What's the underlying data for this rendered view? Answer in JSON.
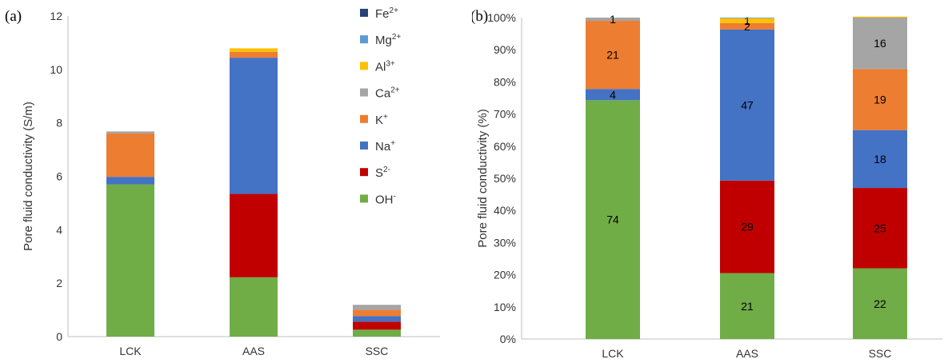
{
  "chart_data": [
    {
      "type": "bar",
      "stacked": true,
      "panel_label": "(a)",
      "title": "",
      "xlabel": "",
      "ylabel": "Pore fluid conductivity (S/m)",
      "ylim": [
        0,
        12
      ],
      "yticks": [
        0,
        2,
        4,
        6,
        8,
        10,
        12
      ],
      "ytick_labels": [
        "0",
        "2",
        "4",
        "6",
        "8",
        "10",
        "12"
      ],
      "grid": false,
      "legend_position": "right",
      "categories": [
        "LCK",
        "AAS",
        "SSC"
      ],
      "series": [
        {
          "key": "oh",
          "name": "OH",
          "sup": "-",
          "color": "#70ad47",
          "values": [
            5.7,
            2.22,
            0.26
          ]
        },
        {
          "key": "s",
          "name": "S",
          "sup": "2-",
          "color": "#c00000",
          "values": [
            0,
            3.12,
            0.3
          ]
        },
        {
          "key": "na",
          "name": "Na",
          "sup": "+",
          "color": "#4472c4",
          "values": [
            0.28,
            5.1,
            0.21
          ]
        },
        {
          "key": "k",
          "name": "K",
          "sup": "+",
          "color": "#ed7d31",
          "values": [
            1.62,
            0.22,
            0.23
          ]
        },
        {
          "key": "ca",
          "name": "Ca",
          "sup": "2+",
          "color": "#a5a5a5",
          "values": [
            0.08,
            0,
            0.19
          ]
        },
        {
          "key": "al",
          "name": "Al",
          "sup": "3+",
          "color": "#ffc000",
          "values": [
            0,
            0.13,
            0
          ]
        },
        {
          "key": "mg",
          "name": "Mg",
          "sup": "2+",
          "color": "#5b9bd5",
          "values": [
            0,
            0,
            0
          ]
        },
        {
          "key": "fe",
          "name": "Fe",
          "sup": "2+",
          "color": "#264478",
          "values": [
            0,
            0,
            0
          ]
        }
      ]
    },
    {
      "type": "bar",
      "stacked": true,
      "panel_label": "(b)",
      "title": "",
      "xlabel": "",
      "ylabel": "Pore fluid conductivity (%)",
      "ylim": [
        0,
        100
      ],
      "yticks": [
        0,
        10,
        20,
        30,
        40,
        50,
        60,
        70,
        80,
        90,
        100
      ],
      "ytick_labels": [
        "0%",
        "10%",
        "20%",
        "30%",
        "40%",
        "50%",
        "60%",
        "70%",
        "80%",
        "90%",
        "100%"
      ],
      "grid": false,
      "categories": [
        "LCK",
        "AAS",
        "SSC"
      ],
      "series": [
        {
          "key": "oh",
          "color": "#70ad47",
          "values": [
            74.3,
            20.5,
            22
          ],
          "labels": [
            "74",
            "21",
            "22"
          ]
        },
        {
          "key": "s",
          "color": "#c00000",
          "values": [
            0,
            28.8,
            25
          ],
          "labels": [
            "",
            "29",
            "25"
          ]
        },
        {
          "key": "na",
          "color": "#4472c4",
          "values": [
            3.5,
            47,
            18
          ],
          "labels": [
            "4",
            "47",
            "18"
          ]
        },
        {
          "key": "k",
          "color": "#ed7d31",
          "values": [
            21.2,
            2,
            19
          ],
          "labels": [
            "21",
            "2",
            "19"
          ]
        },
        {
          "key": "ca",
          "color": "#a5a5a5",
          "values": [
            1,
            0,
            16
          ],
          "labels": [
            "1",
            "",
            "16"
          ]
        },
        {
          "key": "al",
          "color": "#ffc000",
          "values": [
            0,
            1.5,
            0.3
          ],
          "labels": [
            "",
            "1",
            ""
          ]
        },
        {
          "key": "mg",
          "color": "#5b9bd5",
          "values": [
            0,
            0.2,
            0
          ],
          "labels": [
            "",
            "",
            ""
          ]
        },
        {
          "key": "fe",
          "color": "#264478",
          "values": [
            0,
            0,
            0
          ],
          "labels": [
            "",
            "",
            ""
          ]
        }
      ]
    }
  ]
}
